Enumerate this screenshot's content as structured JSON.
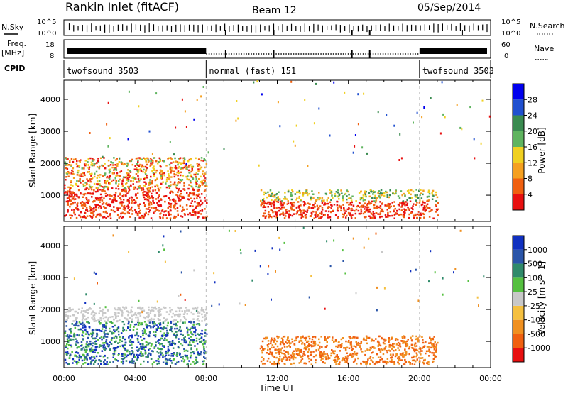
{
  "header": {
    "station": "Rankin Inlet (fitACF)",
    "beam": "Beam 12",
    "date": "05/Sep/2014"
  },
  "left_labels": {
    "nsky": "N.Sky",
    "freq": "Freq.",
    "freq_unit": "[MHz]",
    "cpid": "CPID"
  },
  "right_labels": {
    "nsearch": "N.Search",
    "nave": "Nave"
  },
  "summary_axes": {
    "noise_left_ticks": [
      "10^5",
      "10^0"
    ],
    "noise_right_ticks": [
      "10^5",
      "10^0"
    ],
    "freq_left_ticks": [
      "18",
      "8"
    ],
    "nave_right_ticks": [
      "60",
      "0"
    ]
  },
  "cpid_segments": [
    {
      "label": "twofsound 3503",
      "start_h": 0,
      "end_h": 8
    },
    {
      "label": "normal (fast) 151",
      "start_h": 8,
      "end_h": 20
    },
    {
      "label": "twofsound 3503",
      "start_h": 20,
      "end_h": 24
    }
  ],
  "chart_data": [
    {
      "type": "heatmap",
      "ylabel": "Slant Range [km]",
      "xlabel": "",
      "ylim": [
        180,
        4600
      ],
      "xlim_hours": [
        0,
        24
      ],
      "yticks": [
        1000,
        2000,
        3000,
        4000
      ],
      "xticks": [
        "00:00",
        "04:00",
        "08:00",
        "12:00",
        "16:00",
        "20:00",
        "00:00"
      ],
      "colorbar": {
        "label": "Power [dB]",
        "ticks": [
          "28",
          "24",
          "20",
          "16",
          "12",
          "8",
          "4"
        ],
        "colors": [
          "#0000ee",
          "#2050d0",
          "#3a8b50",
          "#5fb45f",
          "#f0d020",
          "#f5a020",
          "#f06010",
          "#e81010"
        ]
      },
      "dominant_features": [
        {
          "start_h": 0,
          "end_h": 8,
          "range_km": [
            300,
            2200
          ],
          "level": "strong"
        },
        {
          "start_h": 11,
          "end_h": 21,
          "range_km": [
            300,
            1200
          ],
          "level": "strong"
        }
      ]
    },
    {
      "type": "heatmap",
      "ylabel": "Slant Range [km]",
      "xlabel": "Time UT",
      "ylim": [
        180,
        4600
      ],
      "xlim_hours": [
        0,
        24
      ],
      "yticks": [
        1000,
        2000,
        3000,
        4000
      ],
      "xticks": [
        "00:00",
        "04:00",
        "08:00",
        "12:00",
        "16:00",
        "20:00",
        "00:00"
      ],
      "colorbar": {
        "label": "Velocity [m s^-1]",
        "ticks": [
          "1000",
          "500",
          "100",
          "25",
          "-25",
          "-100",
          "-500",
          "-1000"
        ],
        "colors": [
          "#1030c0",
          "#2a55a8",
          "#2f8a6a",
          "#55c040",
          "#c8c8c8",
          "#f5c040",
          "#f09020",
          "#f06010",
          "#e81010"
        ]
      },
      "dominant_features": [
        {
          "start_h": 0,
          "end_h": 8,
          "range_km": [
            300,
            2100
          ],
          "level": "mixed"
        },
        {
          "start_h": 11,
          "end_h": 21,
          "range_km": [
            300,
            1200
          ],
          "level": "negative"
        }
      ]
    }
  ]
}
